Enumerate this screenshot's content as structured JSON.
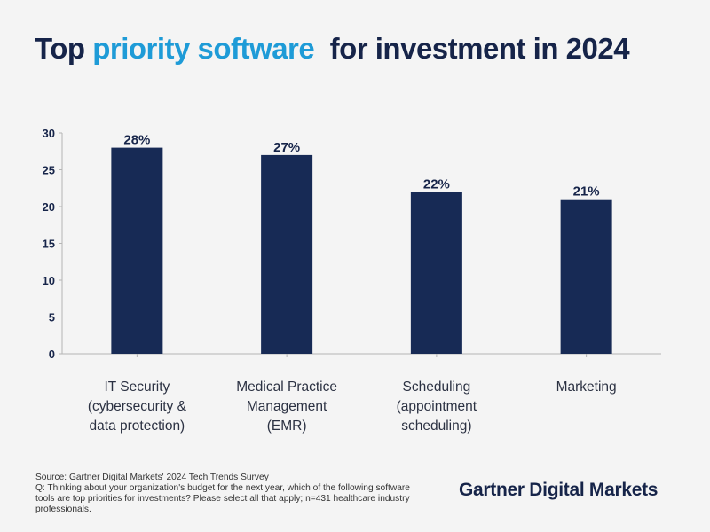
{
  "title": {
    "part1": "Top ",
    "accent": "priority software",
    "part2": "  for investment in 2024"
  },
  "colors": {
    "bar": "#172a55",
    "title": "#162449",
    "accent": "#1e9bd7",
    "background": "#f4f4f4"
  },
  "chart_data": {
    "type": "bar",
    "categories": [
      [
        "IT Security",
        "(cybersecurity &",
        "data protection)"
      ],
      [
        "Medical Practice",
        "Management",
        "(EMR)"
      ],
      [
        "Scheduling",
        "(appointment",
        "scheduling)"
      ],
      [
        "Marketing"
      ]
    ],
    "values": [
      28,
      27,
      22,
      21
    ],
    "data_labels": [
      "28%",
      "27%",
      "22%",
      "21%"
    ],
    "ylim": [
      0,
      30
    ],
    "yticks": [
      0,
      5,
      10,
      15,
      20,
      25,
      30
    ],
    "grid": false,
    "xlabel": "",
    "ylabel": ""
  },
  "footer": {
    "source": "Source: Gartner Digital Markets' 2024 Tech Trends Survey",
    "question": "Q: Thinking about your organization's budget for the next year, which of the following software tools are top priorities for investments? Please select all that apply; n=431 healthcare industry professionals."
  },
  "brand": "Gartner Digital Markets"
}
